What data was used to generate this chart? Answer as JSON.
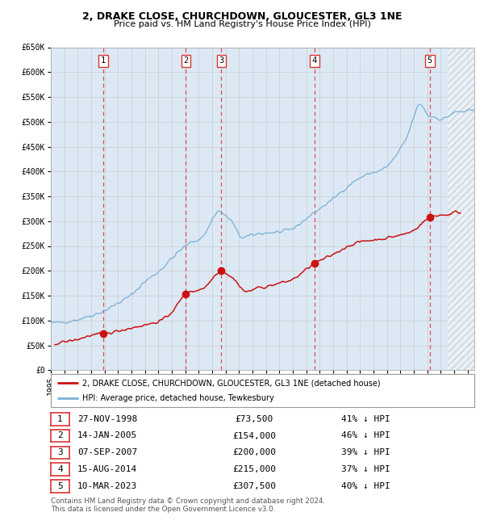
{
  "title1": "2, DRAKE CLOSE, CHURCHDOWN, GLOUCESTER, GL3 1NE",
  "title2": "Price paid vs. HM Land Registry's House Price Index (HPI)",
  "ylim": [
    0,
    650000
  ],
  "yticks": [
    0,
    50000,
    100000,
    150000,
    200000,
    250000,
    300000,
    350000,
    400000,
    450000,
    500000,
    550000,
    600000,
    650000
  ],
  "ytick_labels": [
    "£0",
    "£50K",
    "£100K",
    "£150K",
    "£200K",
    "£250K",
    "£300K",
    "£350K",
    "£400K",
    "£450K",
    "£500K",
    "£550K",
    "£600K",
    "£650K"
  ],
  "xlim_start": 1995.0,
  "xlim_end": 2026.5,
  "hpi_color": "#7bafd4",
  "price_color": "#cc1111",
  "plot_bg": "#dce9f5",
  "grid_color": "#cccccc",
  "sale_dates_x": [
    1998.9,
    2005.05,
    2007.68,
    2014.62,
    2023.19
  ],
  "sale_prices": [
    73500,
    154000,
    200000,
    215000,
    307500
  ],
  "sale_labels": [
    "1",
    "2",
    "3",
    "4",
    "5"
  ],
  "vline_color": "#dd3333",
  "hatch_start": 2024.5,
  "legend_line1": "2, DRAKE CLOSE, CHURCHDOWN, GLOUCESTER, GL3 1NE (detached house)",
  "legend_line2": "HPI: Average price, detached house, Tewkesbury",
  "table_rows": [
    [
      "1",
      "27-NOV-1998",
      "£73,500",
      "41% ↓ HPI"
    ],
    [
      "2",
      "14-JAN-2005",
      "£154,000",
      "46% ↓ HPI"
    ],
    [
      "3",
      "07-SEP-2007",
      "£200,000",
      "39% ↓ HPI"
    ],
    [
      "4",
      "15-AUG-2014",
      "£215,000",
      "37% ↓ HPI"
    ],
    [
      "5",
      "10-MAR-2023",
      "£307,500",
      "40% ↓ HPI"
    ]
  ],
  "footnote1": "Contains HM Land Registry data © Crown copyright and database right 2024.",
  "footnote2": "This data is licensed under the Open Government Licence v3.0."
}
